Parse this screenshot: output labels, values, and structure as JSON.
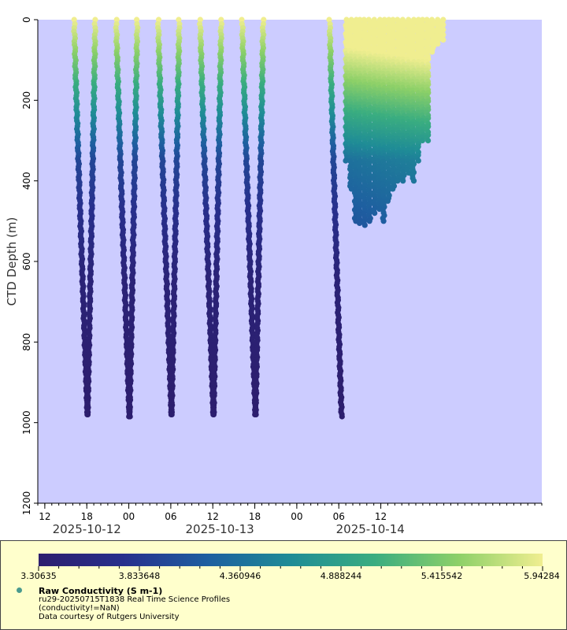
{
  "chart_data": {
    "type": "scatter",
    "y_axis": {
      "label": "CTD Depth (m)",
      "range": [
        1200,
        0
      ],
      "ticks": [
        0,
        200,
        400,
        600,
        800,
        1000,
        1200
      ],
      "reversed": true
    },
    "x_axis": {
      "range_hours": [
        -7,
        65
      ],
      "tick_labels": [
        {
          "hour": -6,
          "label": "12"
        },
        {
          "hour": 0,
          "label": "18"
        },
        {
          "hour": 6,
          "label": "00"
        },
        {
          "hour": 12,
          "label": "06"
        },
        {
          "hour": 18,
          "label": "12"
        },
        {
          "hour": 24,
          "label": "18"
        },
        {
          "hour": 30,
          "label": "00"
        },
        {
          "hour": 36,
          "label": "06"
        },
        {
          "hour": 42,
          "label": "12"
        }
      ],
      "date_labels": [
        {
          "hour": 0,
          "label": "2025-10-12"
        },
        {
          "hour": 19,
          "label": "2025-10-13"
        },
        {
          "hour": 40.5,
          "label": "2025-10-14"
        }
      ]
    },
    "color_scale": {
      "ticks": [
        "3.30635",
        "3.833648",
        "4.360946",
        "4.888244",
        "5.415542",
        "5.94284"
      ],
      "min": 3.30635,
      "max": 5.94284
    },
    "series_name": "Raw Conductivity (S m-1)",
    "deep_profiles": [
      {
        "t_start": -1.8,
        "t_bottom": 0.1,
        "t_end": 1.2,
        "max_depth": 980
      },
      {
        "t_start": 4.2,
        "t_bottom": 6.1,
        "t_end": 7.2,
        "max_depth": 985
      },
      {
        "t_start": 10.2,
        "t_bottom": 12.1,
        "t_end": 13.2,
        "max_depth": 980
      },
      {
        "t_start": 16.2,
        "t_bottom": 18.1,
        "t_end": 19.2,
        "max_depth": 980
      },
      {
        "t_start": 22.2,
        "t_bottom": 24.1,
        "t_end": 25.2,
        "max_depth": 980
      },
      {
        "t_start": 34.7,
        "t_bottom": 36.4,
        "t_end": 36.9,
        "max_depth": 985
      }
    ],
    "shallow_profiles": [
      {
        "t": 37.1,
        "max_depth": 350
      },
      {
        "t": 37.7,
        "max_depth": 420
      },
      {
        "t": 38.4,
        "max_depth": 500
      },
      {
        "t": 39.0,
        "max_depth": 505
      },
      {
        "t": 39.7,
        "max_depth": 510
      },
      {
        "t": 40.4,
        "max_depth": 500
      },
      {
        "t": 41.1,
        "max_depth": 480
      },
      {
        "t": 41.8,
        "max_depth": 470
      },
      {
        "t": 42.4,
        "max_depth": 500
      },
      {
        "t": 43.1,
        "max_depth": 450
      },
      {
        "t": 43.8,
        "max_depth": 420
      },
      {
        "t": 44.5,
        "max_depth": 400
      },
      {
        "t": 45.2,
        "max_depth": 400
      },
      {
        "t": 45.9,
        "max_depth": 380
      },
      {
        "t": 46.6,
        "max_depth": 400
      },
      {
        "t": 47.3,
        "max_depth": 350
      },
      {
        "t": 48.0,
        "max_depth": 300
      },
      {
        "t": 48.7,
        "max_depth": 300
      },
      {
        "t": 49.4,
        "max_depth": 80
      },
      {
        "t": 50.1,
        "max_depth": 60
      },
      {
        "t": 50.8,
        "max_depth": 50
      }
    ]
  },
  "legend": {
    "title": "Raw Conductivity (S m-1)",
    "line1": "ru29-20250715T1838 Real Time Science Profiles",
    "line2": "(conductivity!=NaN)",
    "line3": "Data courtesy of Rutgers University"
  },
  "colors": {
    "plot_bg": "#ccccff",
    "legend_bg": "#ffffcc",
    "scale": [
      "#2c1e6e",
      "#282f8c",
      "#1e5ea0",
      "#1f8c96",
      "#3aad80",
      "#8dd068",
      "#f0ee90"
    ]
  }
}
